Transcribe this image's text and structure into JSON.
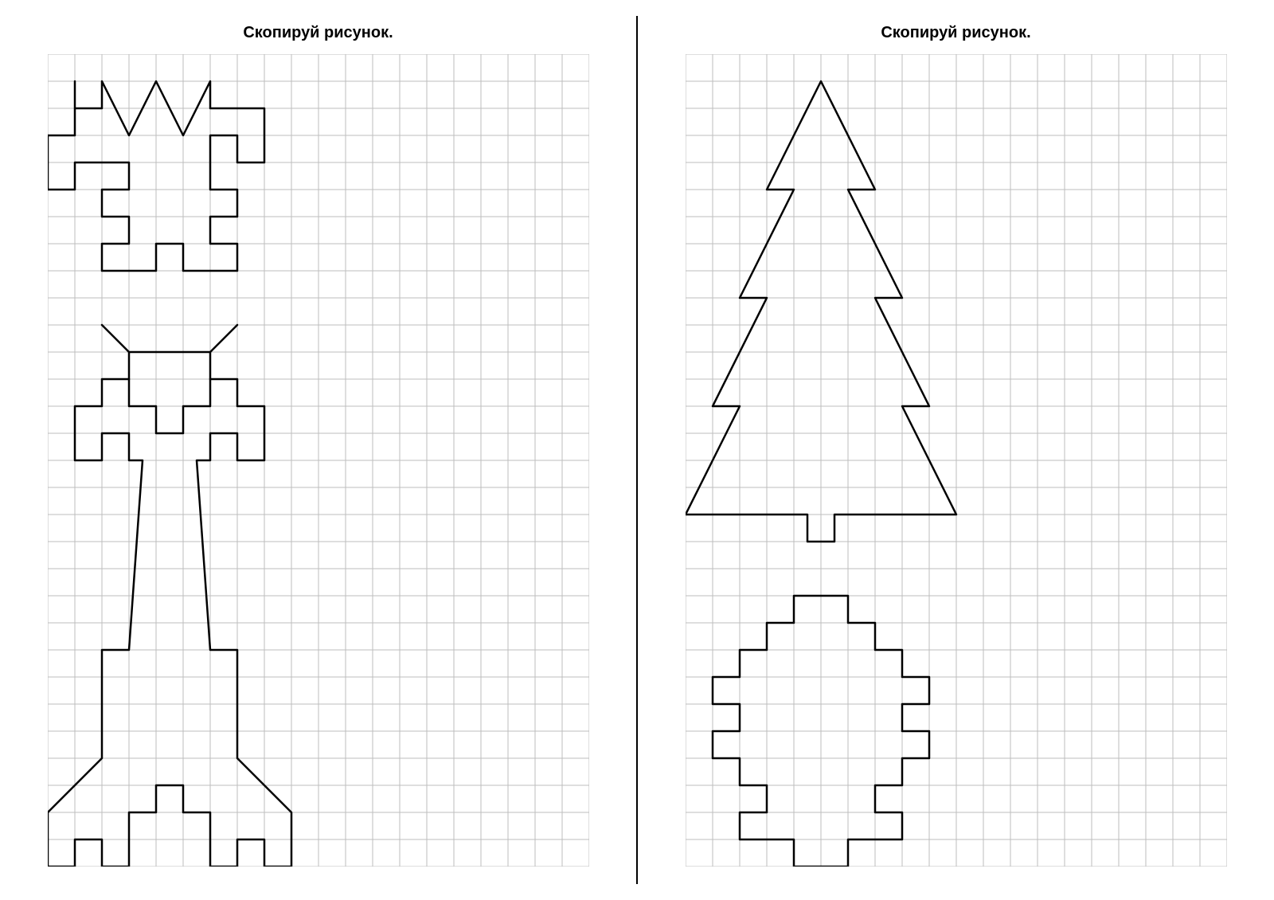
{
  "left": {
    "title": "Скопируй рисунок.",
    "grid": {
      "cols": 20,
      "rows": 30,
      "cell": 34
    },
    "colors": {
      "grid": "#bdbdbd",
      "stroke": "#000000",
      "bg": "#ffffff"
    },
    "stroke_width": 2.5,
    "shapes": [
      {
        "type": "polyline",
        "closed": true,
        "points": [
          [
            1,
            1
          ],
          [
            1,
            2
          ],
          [
            2,
            2
          ],
          [
            2,
            1
          ],
          [
            3,
            3
          ],
          [
            4,
            1
          ],
          [
            5,
            3
          ],
          [
            6,
            1
          ],
          [
            6,
            2
          ],
          [
            8,
            2
          ],
          [
            8,
            4
          ],
          [
            7,
            4
          ],
          [
            7,
            3
          ],
          [
            6,
            3
          ],
          [
            6,
            5
          ],
          [
            7,
            5
          ],
          [
            7,
            6
          ],
          [
            6,
            6
          ],
          [
            6,
            7
          ],
          [
            7,
            7
          ],
          [
            7,
            8
          ],
          [
            5,
            8
          ],
          [
            5,
            7
          ],
          [
            4,
            7
          ],
          [
            4,
            8
          ],
          [
            2,
            8
          ],
          [
            2,
            7
          ],
          [
            3,
            7
          ],
          [
            3,
            6
          ],
          [
            2,
            6
          ],
          [
            2,
            5
          ],
          [
            3,
            5
          ],
          [
            3,
            4
          ],
          [
            1,
            4
          ],
          [
            1,
            5
          ],
          [
            0,
            5
          ],
          [
            0,
            3
          ],
          [
            1,
            3
          ],
          [
            1,
            1
          ]
        ]
      },
      {
        "type": "segments",
        "lines": [
          [
            [
              2,
              10
            ],
            [
              3,
              11
            ]
          ],
          [
            [
              7,
              10
            ],
            [
              6,
              11
            ]
          ]
        ]
      },
      {
        "type": "polyline",
        "closed": false,
        "points": [
          [
            3,
            12
          ],
          [
            3,
            11
          ],
          [
            6,
            11
          ],
          [
            6,
            12
          ]
        ]
      },
      {
        "type": "polyline",
        "closed": true,
        "points": [
          [
            3,
            13
          ],
          [
            3,
            12
          ],
          [
            2,
            12
          ],
          [
            2,
            13
          ],
          [
            1,
            13
          ],
          [
            1,
            15
          ],
          [
            2,
            15
          ],
          [
            2,
            14
          ],
          [
            3,
            14
          ],
          [
            3,
            15
          ],
          [
            3.5,
            15
          ],
          [
            3,
            22
          ],
          [
            2,
            22
          ],
          [
            2,
            26
          ],
          [
            0,
            28
          ],
          [
            0,
            30
          ],
          [
            1,
            30
          ],
          [
            1,
            29
          ],
          [
            2,
            29
          ],
          [
            2,
            30
          ],
          [
            3,
            30
          ],
          [
            3,
            28
          ],
          [
            4,
            28
          ],
          [
            4,
            27
          ],
          [
            5,
            27
          ],
          [
            5,
            28
          ],
          [
            6,
            28
          ],
          [
            6,
            30
          ],
          [
            7,
            30
          ],
          [
            7,
            29
          ],
          [
            8,
            29
          ],
          [
            8,
            30
          ],
          [
            9,
            30
          ],
          [
            9,
            28
          ],
          [
            7,
            26
          ],
          [
            7,
            22
          ],
          [
            6,
            22
          ],
          [
            5.5,
            15
          ],
          [
            6,
            15
          ],
          [
            6,
            14
          ],
          [
            7,
            14
          ],
          [
            7,
            15
          ],
          [
            8,
            15
          ],
          [
            8,
            13
          ],
          [
            7,
            13
          ],
          [
            7,
            12
          ],
          [
            6,
            12
          ],
          [
            6,
            13
          ],
          [
            5,
            13
          ],
          [
            5,
            14
          ],
          [
            4,
            14
          ],
          [
            4,
            13
          ],
          [
            3,
            13
          ]
        ]
      }
    ]
  },
  "right": {
    "title": "Скопируй рисунок.",
    "grid": {
      "cols": 20,
      "rows": 30,
      "cell": 34
    },
    "colors": {
      "grid": "#bdbdbd",
      "stroke": "#000000",
      "bg": "#ffffff"
    },
    "stroke_width": 2.5,
    "shapes": [
      {
        "type": "polyline",
        "closed": true,
        "points": [
          [
            5,
            1
          ],
          [
            7,
            5
          ],
          [
            6,
            5
          ],
          [
            8,
            9
          ],
          [
            7,
            9
          ],
          [
            9,
            13
          ],
          [
            8,
            13
          ],
          [
            10,
            17
          ],
          [
            5.5,
            17
          ],
          [
            5.5,
            18
          ],
          [
            4.5,
            18
          ],
          [
            4.5,
            17
          ],
          [
            0,
            17
          ],
          [
            2,
            13
          ],
          [
            1,
            13
          ],
          [
            3,
            9
          ],
          [
            2,
            9
          ],
          [
            4,
            5
          ],
          [
            3,
            5
          ],
          [
            5,
            1
          ]
        ]
      },
      {
        "type": "polyline",
        "closed": true,
        "points": [
          [
            4,
            20
          ],
          [
            6,
            20
          ],
          [
            6,
            21
          ],
          [
            7,
            21
          ],
          [
            7,
            22
          ],
          [
            8,
            22
          ],
          [
            8,
            23
          ],
          [
            9,
            23
          ],
          [
            9,
            24
          ],
          [
            8,
            24
          ],
          [
            8,
            25
          ],
          [
            9,
            25
          ],
          [
            9,
            26
          ],
          [
            8,
            26
          ],
          [
            8,
            27
          ],
          [
            7,
            27
          ],
          [
            7,
            28
          ],
          [
            8,
            28
          ],
          [
            8,
            29
          ],
          [
            6,
            29
          ],
          [
            6,
            30
          ],
          [
            4,
            30
          ],
          [
            4,
            29
          ],
          [
            2,
            29
          ],
          [
            2,
            28
          ],
          [
            3,
            28
          ],
          [
            3,
            27
          ],
          [
            2,
            27
          ],
          [
            2,
            26
          ],
          [
            1,
            26
          ],
          [
            1,
            25
          ],
          [
            2,
            25
          ],
          [
            2,
            24
          ],
          [
            1,
            24
          ],
          [
            1,
            23
          ],
          [
            2,
            23
          ],
          [
            2,
            22
          ],
          [
            3,
            22
          ],
          [
            3,
            21
          ],
          [
            4,
            21
          ],
          [
            4,
            20
          ]
        ]
      }
    ]
  }
}
